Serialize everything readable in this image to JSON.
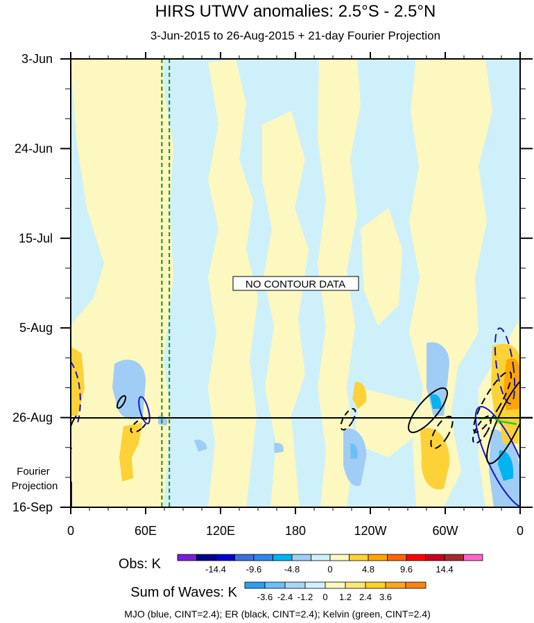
{
  "chart_data": {
    "type": "heatmap",
    "title": "HIRS UTWV anomalies: 2.5°S - 2.5°N",
    "subtitle": "3-Jun-2015 to 26-Aug-2015 + 21-day Fourier Projection",
    "x_tick_labels": [
      "0",
      "60E",
      "120E",
      "180",
      "120W",
      "60W",
      "0"
    ],
    "x_ticks_lon": [
      0,
      60,
      120,
      180,
      240,
      300,
      360
    ],
    "xlim_lon": [
      0,
      360
    ],
    "y_tick_labels": [
      "3-Jun",
      "24-Jun",
      "15-Jul",
      "5-Aug",
      "26-Aug",
      "16-Sep"
    ],
    "y_ticks_day": [
      0,
      21,
      42,
      63,
      84,
      105
    ],
    "ylim_day": [
      0,
      105
    ],
    "ylim_dates": [
      "3-Jun-2015",
      "16-Sep-2015"
    ],
    "observation_end_day": 84,
    "projection_label": "Fourier\nProjection",
    "no_data_label": "NO CONTOUR DATA",
    "dashed_lines_lon": [
      73,
      79
    ],
    "obs_legend": {
      "label": "Obs: K",
      "colors": [
        "#7a1fd6",
        "#00008b",
        "#0000cd",
        "#3e6fdb",
        "#2f86ee",
        "#00b4ef",
        "#9fcdf5",
        "#cef0fa",
        "#fdf8c0",
        "#fcd238",
        "#ffa500",
        "#ff6400",
        "#ff0000",
        "#c8001e",
        "#a52a2a",
        "#ff66cc"
      ],
      "tick_labels": [
        "-14.4",
        "-9.6",
        "-4.8",
        "0",
        "4.8",
        "9.6",
        "14.4"
      ]
    },
    "waves_legend": {
      "label": "Sum of Waves: K",
      "colors": [
        "#2c9ff0",
        "#6cbef7",
        "#a7d6f7",
        "#d2f0fb",
        "#fdf8c0",
        "#fde77a",
        "#fdd023",
        "#fda51e",
        "#fb8318"
      ],
      "tick_labels": [
        "-3.6",
        "-2.4",
        "-1.2",
        "0",
        "1.2",
        "2.4",
        "3.6"
      ]
    },
    "footer": "MJO (blue, CINT=2.4); ER (black, CINT=2.4); Kelvin (green, CINT=2.4)",
    "series": [
      {
        "name": "MJO",
        "color": "#1414c8"
      },
      {
        "name": "ER",
        "color": "#000000"
      },
      {
        "name": "Kelvin",
        "color": "#22cc22"
      }
    ],
    "colors": {
      "positive_weak": "#fdf8c0",
      "negative_weak": "#cef0fa"
    }
  }
}
